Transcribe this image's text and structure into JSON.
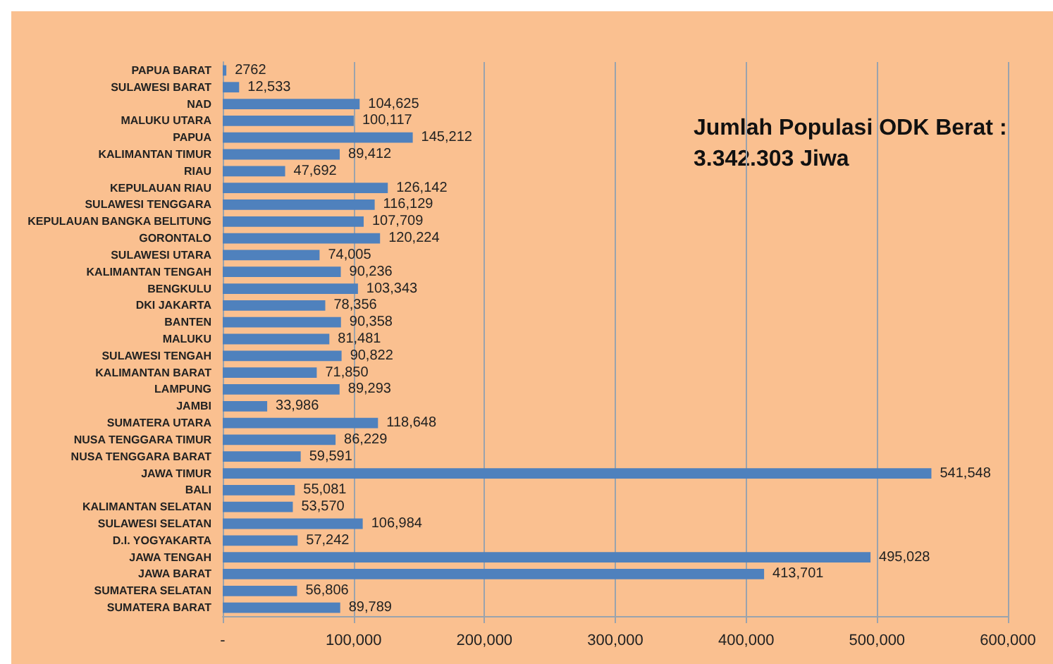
{
  "chart_data": {
    "type": "bar",
    "orientation": "horizontal",
    "categories": [
      "PAPUA BARAT",
      "SULAWESI BARAT",
      "NAD",
      "MALUKU UTARA",
      "PAPUA",
      "KALIMANTAN TIMUR",
      "RIAU",
      "KEPULAUAN RIAU",
      "SULAWESI TENGGARA",
      "KEPULAUAN BANGKA BELITUNG",
      "GORONTALO",
      "SULAWESI UTARA",
      "KALIMANTAN TENGAH",
      "BENGKULU",
      "DKI JAKARTA",
      "BANTEN",
      "MALUKU",
      "SULAWESI TENGAH",
      "KALIMANTAN BARAT",
      "LAMPUNG",
      "JAMBI",
      "SUMATERA UTARA",
      "NUSA TENGGARA TIMUR",
      "NUSA TENGGARA BARAT",
      "JAWA TIMUR",
      "BALI",
      "KALIMANTAN SELATAN",
      "SULAWESI SELATAN",
      "D.I. YOGYAKARTA",
      "JAWA TENGAH",
      "JAWA BARAT",
      "SUMATERA SELATAN",
      "SUMATERA BARAT"
    ],
    "values": [
      2762,
      12533,
      104625,
      100117,
      145212,
      89412,
      47692,
      126142,
      116129,
      107709,
      120224,
      74005,
      90236,
      103343,
      78356,
      90358,
      81481,
      90822,
      71850,
      89293,
      33986,
      118648,
      86229,
      59591,
      541548,
      55081,
      53570,
      106984,
      57242,
      495028,
      413701,
      56806,
      89789
    ],
    "value_labels": [
      "2762",
      "12,533",
      "104,625",
      "100,117",
      "145,212",
      "89,412",
      "47,692",
      "126,142",
      "116,129",
      "107,709",
      "120,224",
      "74,005",
      "90,236",
      "103,343",
      "78,356",
      "90,358",
      "81,481",
      "90,822",
      "71,850",
      "89,293",
      "33,986",
      "118,648",
      "86,229",
      "59,591",
      "541,548",
      "55,081",
      "53,570",
      "106,984",
      "57,242",
      "495,028",
      "413,701",
      "56,806",
      "89,789"
    ],
    "color": "#4f81bd",
    "xlim": [
      0,
      600000
    ],
    "xticks": [
      {
        "value": 0,
        "label": "-"
      },
      {
        "value": 100000,
        "label": "100,000"
      },
      {
        "value": 200000,
        "label": "200,000"
      },
      {
        "value": 300000,
        "label": "300,000"
      },
      {
        "value": 400000,
        "label": "400,000"
      },
      {
        "value": 500000,
        "label": "500,000"
      },
      {
        "value": 600000,
        "label": "600,000"
      }
    ],
    "grid": "x",
    "annotations": [
      "Jumlah Populasi ODK Berat : 3.342.303 Jiwa"
    ]
  }
}
